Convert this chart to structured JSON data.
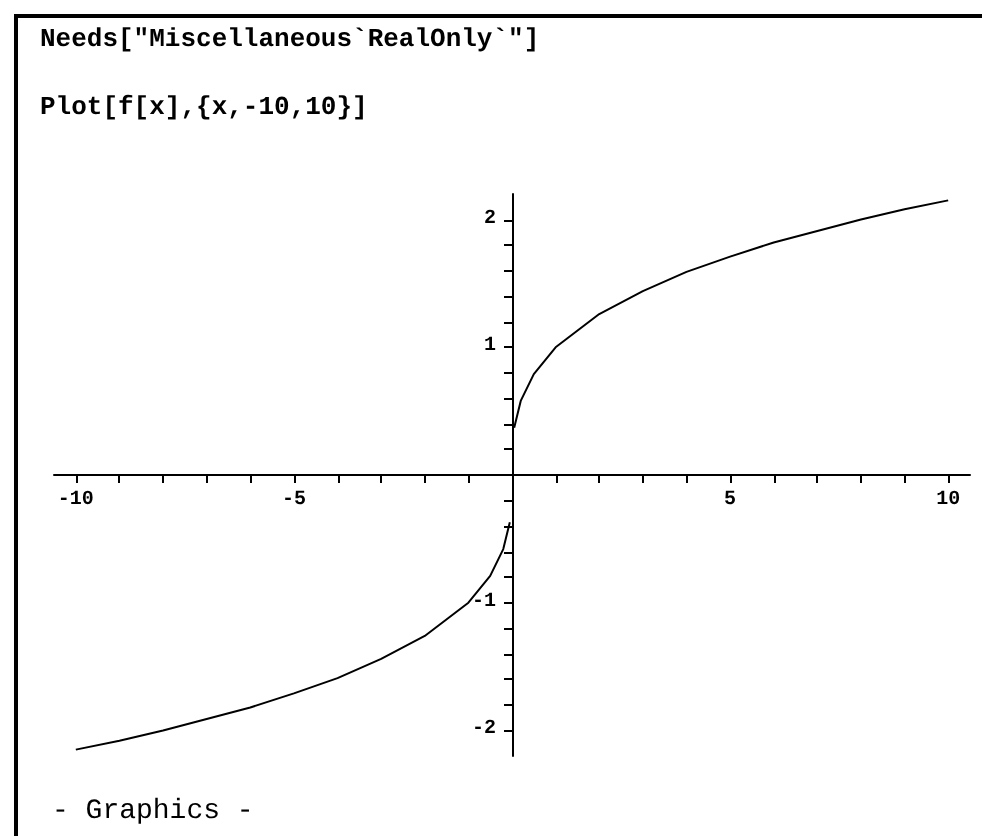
{
  "chart_data": {
    "type": "line",
    "title": "Needs[\"Miscellaneous`RealOnly`\"]",
    "subtitle": "Plot[f[x],{x,-10,10}]",
    "annotations": [
      "- Graphics -"
    ],
    "x": [
      -10,
      -9,
      -8,
      -7,
      -6,
      -5,
      -4,
      -3,
      -2,
      -1,
      -0.5,
      -0.2,
      -0.05,
      0,
      0.05,
      0.2,
      0.5,
      1,
      2,
      3,
      4,
      5,
      6,
      7,
      8,
      9,
      10
    ],
    "series": [
      {
        "color": "#000000",
        "values": [
          -2.15,
          -2.08,
          -2.0,
          -1.91,
          -1.82,
          -1.71,
          -1.59,
          -1.44,
          -1.26,
          -1.0,
          -0.79,
          -0.58,
          -0.37,
          null,
          0.37,
          0.58,
          0.79,
          1.0,
          1.26,
          1.44,
          1.59,
          1.71,
          1.82,
          1.91,
          2.0,
          2.08,
          2.15
        ]
      }
    ],
    "xlim": [
      -10.5,
      10.5
    ],
    "ylim": [
      -2.2,
      2.2
    ],
    "xticks": [
      -10,
      {
        "value": -9,
        "label": null
      },
      {
        "value": -8,
        "label": null
      },
      {
        "value": -7,
        "label": null
      },
      {
        "value": -6,
        "label": null
      },
      -5,
      {
        "value": -4,
        "label": null
      },
      {
        "value": -3,
        "label": null
      },
      {
        "value": -2,
        "label": null
      },
      {
        "value": -1,
        "label": null
      },
      {
        "value": 1,
        "label": null
      },
      {
        "value": 2,
        "label": null
      },
      {
        "value": 3,
        "label": null
      },
      {
        "value": 4,
        "label": null
      },
      5,
      {
        "value": 6,
        "label": null
      },
      {
        "value": 7,
        "label": null
      },
      {
        "value": 8,
        "label": null
      },
      {
        "value": 9,
        "label": null
      },
      10
    ],
    "yticks": [
      -2,
      {
        "value": -1.8,
        "label": null
      },
      {
        "value": -1.6,
        "label": null
      },
      {
        "value": -1.4,
        "label": null
      },
      {
        "value": -1.2,
        "label": null
      },
      -1,
      {
        "value": -0.8,
        "label": null
      },
      {
        "value": -0.6,
        "label": null
      },
      {
        "value": -0.4,
        "label": null
      },
      {
        "value": -0.2,
        "label": null
      },
      {
        "value": 0.2,
        "label": null
      },
      {
        "value": 0.4,
        "label": null
      },
      {
        "value": 0.6,
        "label": null
      },
      {
        "value": 0.8,
        "label": null
      },
      1,
      {
        "value": 1.2,
        "label": null
      },
      {
        "value": 1.4,
        "label": null
      },
      {
        "value": 1.6,
        "label": null
      },
      {
        "value": 1.8,
        "label": null
      },
      2
    ],
    "grid": false,
    "marker": "none",
    "line_style": "solid"
  }
}
